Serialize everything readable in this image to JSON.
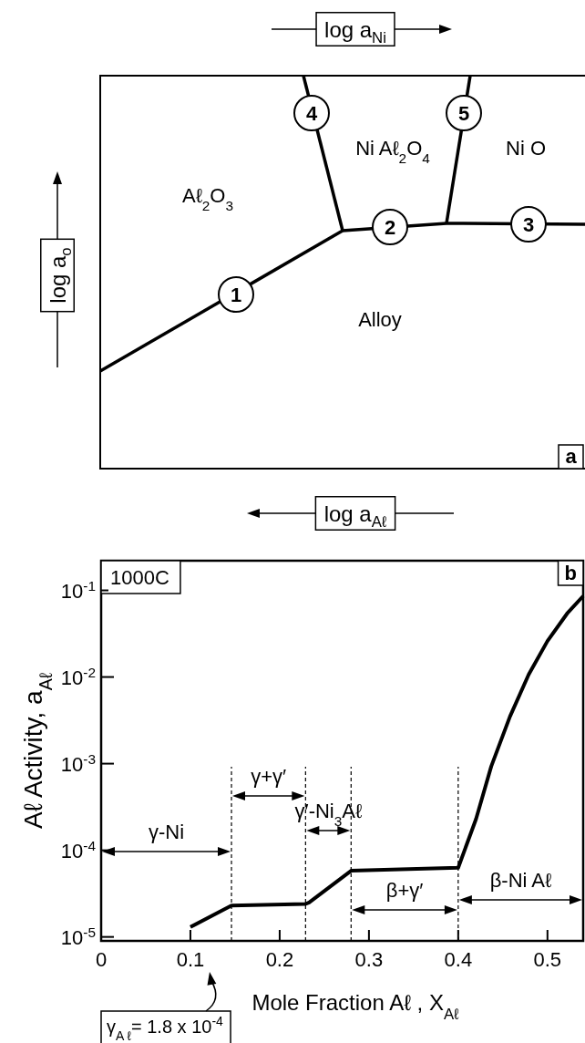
{
  "chart_data": [
    {
      "type": "other",
      "xlabel": "log a$_{Aℓ}$",
      "x2label": "log a$_{Ni}$",
      "ylabel": "log a$_{o}$",
      "annotations": [
        "Aℓ$_{2}$O$_{3}$",
        "Ni Aℓ$_{2}$O$_{4}$",
        "Ni O",
        "Alloy",
        "1",
        "2",
        "3",
        "4",
        "5",
        "a"
      ]
    },
    {
      "type": "line",
      "log": true,
      "xlabel": "Mole Fraction  Aℓ , X$_{Aℓ}$",
      "ylabel": "Aℓ Activity,  a$_{Aℓ}$",
      "xlim": [
        0,
        0.54
      ],
      "xticks": [
        0,
        0.1,
        0.2,
        0.3,
        0.4,
        0.5
      ],
      "ylim": [
        9e-06,
        0.22
      ],
      "yticks": [
        {
          "value": 1e-05,
          "label": "10$^{-5}$"
        },
        {
          "value": 0.0001,
          "label": "10$^{-4}$"
        },
        {
          "value": 0.001,
          "label": "10$^{-3}$"
        },
        {
          "value": 0.01,
          "label": "10$^{-2}$"
        },
        {
          "value": 0.1,
          "label": "10$^{-1}$"
        }
      ],
      "series": [
        {
          "color": "#000000",
          "x": [
            0.1,
            0.146,
            0.229,
            0.233,
            0.28,
            0.4,
            0.42,
            0.437,
            0.458,
            0.479,
            0.5,
            0.522,
            0.54
          ],
          "values": [
            1.3e-05,
            2.3e-05,
            2.4e-05,
            2.5e-05,
            5.8e-05,
            6.3e-05,
            0.00023,
            0.00093,
            0.0035,
            0.0107,
            0.026,
            0.054,
            0.086
          ]
        }
      ],
      "ref_lines": [
        {
          "axis": "x",
          "value": 0.146,
          "line_style": "dashed"
        },
        {
          "axis": "x",
          "value": 0.229,
          "line_style": "dashed"
        },
        {
          "axis": "x",
          "value": 0.28,
          "line_style": "dashed"
        },
        {
          "axis": "x",
          "value": 0.4,
          "line_style": "dashed"
        }
      ],
      "annotations": [
        "γ-Ni",
        "γ+γ′",
        "γ′-Ni$_{3}$Aℓ",
        "β+γ′",
        "β-Ni Aℓ",
        "γ$_{A ℓ}$= 1.8 x 10$^{-4}$",
        "1000C",
        "b"
      ]
    }
  ]
}
